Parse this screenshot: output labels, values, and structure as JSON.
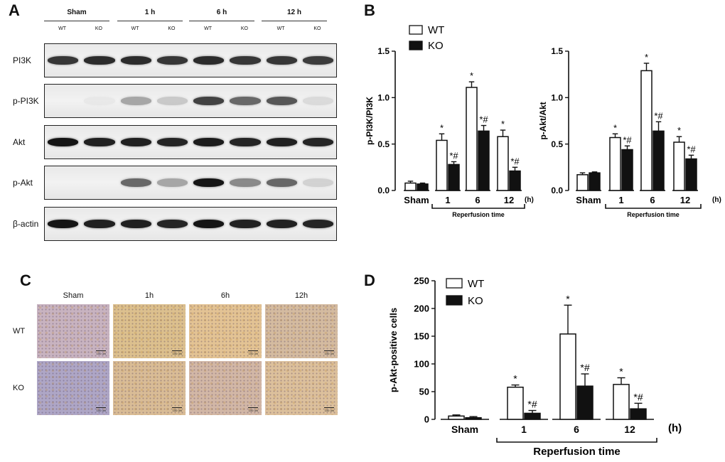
{
  "panels": {
    "a": "A",
    "b": "B",
    "c": "C",
    "d": "D"
  },
  "blot": {
    "groups": [
      "Sham",
      "1 h",
      "6 h",
      "12 h"
    ],
    "lanes": [
      "WT",
      "KO",
      "WT",
      "KO",
      "WT",
      "KO",
      "WT",
      "KO"
    ],
    "rows": [
      {
        "label": "PI3K",
        "intensity": [
          0.8,
          0.85,
          0.85,
          0.8,
          0.85,
          0.8,
          0.8,
          0.78
        ]
      },
      {
        "label": "p-PI3K",
        "intensity": [
          0.0,
          0.08,
          0.45,
          0.3,
          0.75,
          0.65,
          0.7,
          0.2
        ]
      },
      {
        "label": "Akt",
        "intensity": [
          0.95,
          0.9,
          0.9,
          0.88,
          0.92,
          0.88,
          0.9,
          0.88
        ]
      },
      {
        "label": "p-Akt",
        "intensity": [
          0.0,
          0.0,
          0.65,
          0.45,
          0.95,
          0.55,
          0.65,
          0.25
        ]
      },
      {
        "label": "β-actin",
        "intensity": [
          0.95,
          0.9,
          0.9,
          0.88,
          0.95,
          0.9,
          0.9,
          0.88
        ]
      }
    ]
  },
  "histology": {
    "columns": [
      "Sham",
      "1h",
      "6h",
      "12h"
    ],
    "rows": [
      "WT",
      "KO"
    ],
    "scale_label": "100 um",
    "tiles": [
      [
        "#c8b3c0",
        "#dcc08e",
        "#e3c394",
        "#d4bba0"
      ],
      [
        "#aea6c6",
        "#d9bc96",
        "#d2b7a6",
        "#dcc09c"
      ]
    ]
  },
  "chart_data": [
    {
      "type": "bar",
      "ylabel": "p-PI3K/PI3K",
      "xlabel": "Reperfusion time",
      "categories": [
        "Sham",
        "1",
        "6",
        "12"
      ],
      "unit": "(h)",
      "ylim": [
        0,
        1.5
      ],
      "yticks": [
        "0.0",
        "0.5",
        "1.0",
        "1.5"
      ],
      "series": [
        {
          "name": "WT",
          "values": [
            0.08,
            0.54,
            1.11,
            0.58
          ],
          "errors": [
            0.02,
            0.07,
            0.06,
            0.07
          ],
          "labels": [
            "",
            "*",
            "*",
            "*"
          ]
        },
        {
          "name": "KO",
          "values": [
            0.07,
            0.28,
            0.64,
            0.21
          ],
          "errors": [
            0.01,
            0.03,
            0.06,
            0.04
          ],
          "labels": [
            "",
            "*#",
            "*#",
            "*#"
          ]
        }
      ],
      "legend": "top-left"
    },
    {
      "type": "bar",
      "ylabel": "p-Akt/Akt",
      "xlabel": "Reperfusion time",
      "categories": [
        "Sham",
        "1",
        "6",
        "12"
      ],
      "unit": "(h)",
      "ylim": [
        0,
        1.5
      ],
      "yticks": [
        "0.0",
        "0.5",
        "1.0",
        "1.5"
      ],
      "series": [
        {
          "name": "WT",
          "values": [
            0.17,
            0.57,
            1.29,
            0.52
          ],
          "errors": [
            0.02,
            0.04,
            0.08,
            0.06
          ],
          "labels": [
            "",
            "*",
            "*",
            "*"
          ]
        },
        {
          "name": "KO",
          "values": [
            0.19,
            0.44,
            0.64,
            0.34
          ],
          "errors": [
            0.01,
            0.04,
            0.1,
            0.04
          ],
          "labels": [
            "",
            "*#",
            "*#",
            "*#"
          ]
        }
      ]
    },
    {
      "type": "bar",
      "ylabel": "p-Akt-positive cells",
      "xlabel": "Reperfusion time",
      "categories": [
        "Sham",
        "1",
        "6",
        "12"
      ],
      "unit": "(h)",
      "ylim": [
        0,
        250
      ],
      "yticks": [
        "0",
        "50",
        "100",
        "150",
        "200",
        "250"
      ],
      "series": [
        {
          "name": "WT",
          "values": [
            6,
            58,
            154,
            63
          ],
          "errors": [
            2,
            4,
            52,
            12
          ],
          "labels": [
            "",
            "*",
            "*",
            "*"
          ]
        },
        {
          "name": "KO",
          "values": [
            3,
            11,
            60,
            19
          ],
          "errors": [
            2,
            5,
            22,
            10
          ],
          "labels": [
            "",
            "*#",
            "*#",
            "*#"
          ]
        }
      ],
      "legend": "top-left"
    }
  ]
}
